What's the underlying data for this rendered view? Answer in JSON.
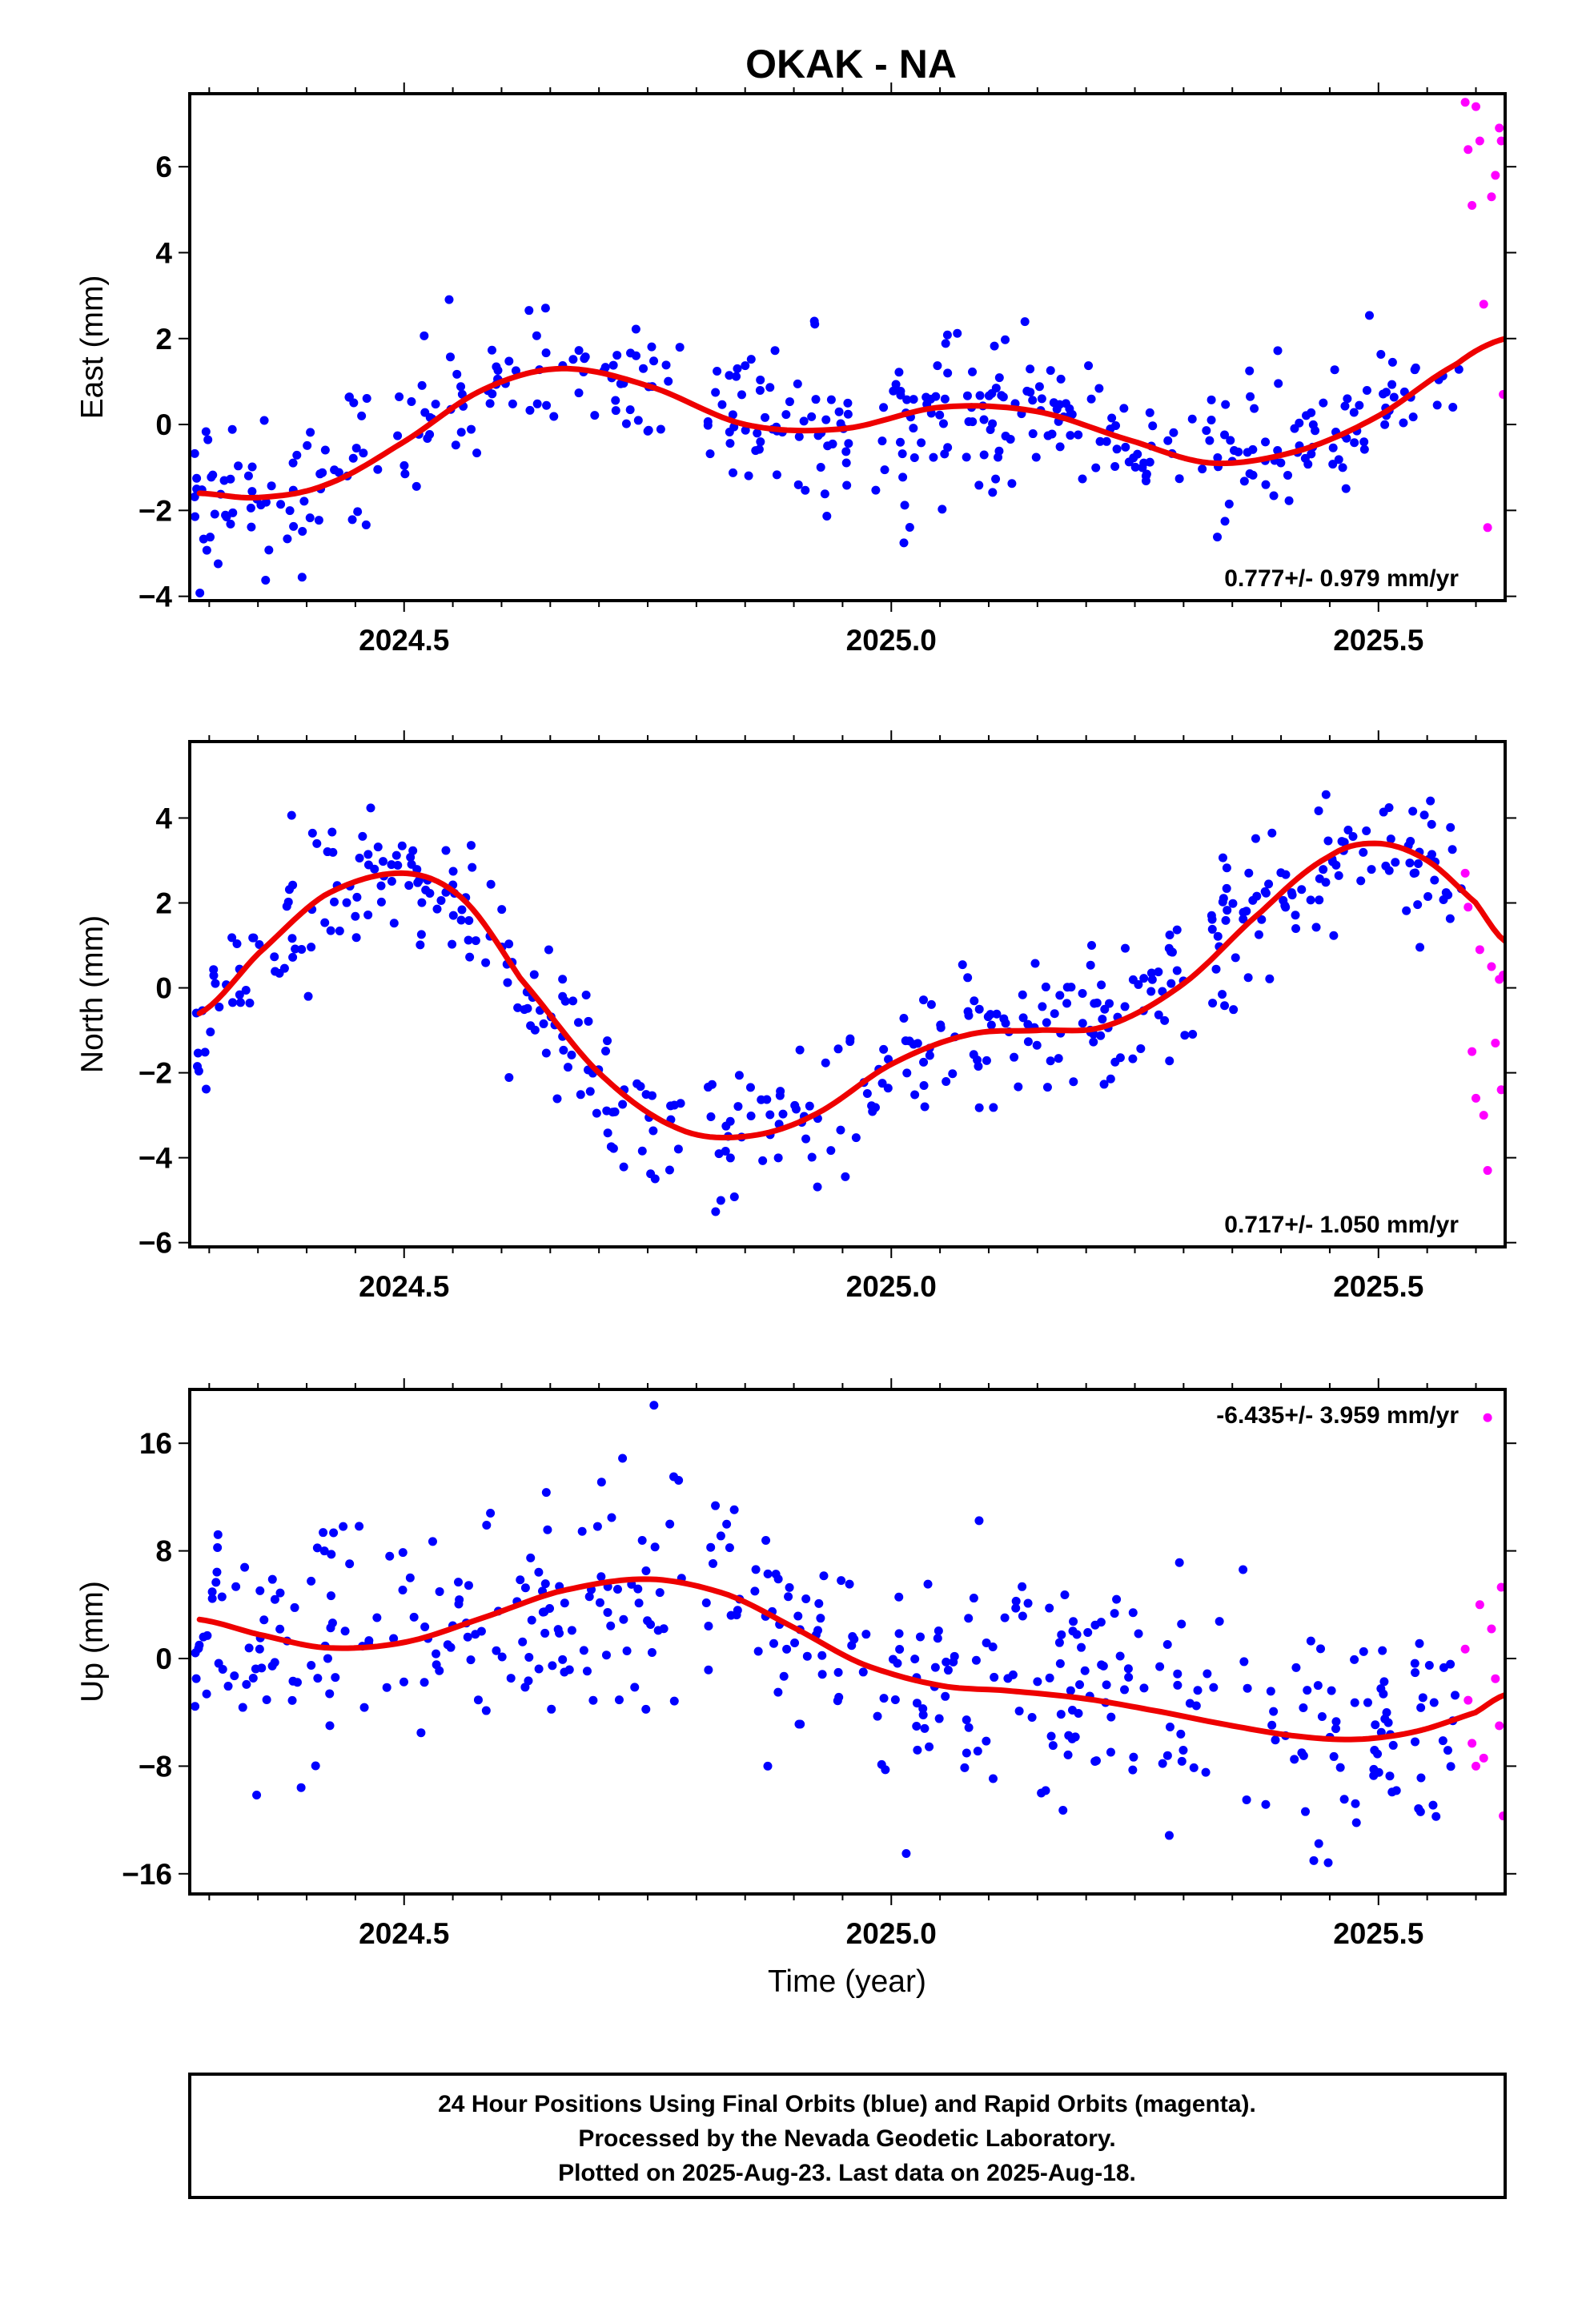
{
  "chart_data": {
    "type": "scatter",
    "title": "OKAK - NA",
    "xlabel": "Time (year)",
    "xlim": [
      2024.28,
      2025.63
    ],
    "x_ticks_major": [
      2024.5,
      2025.0,
      2025.5
    ],
    "x_tick_labels": [
      "2024.5",
      "2025.0",
      "2025.5"
    ],
    "legend": "none",
    "grid": false,
    "colors": {
      "final": "#0000ff",
      "rapid": "#ff00ff",
      "fit": "#ee0000"
    },
    "footer": [
      "24 Hour Positions Using Final Orbits (blue) and Rapid Orbits (magenta).",
      "Processed by the Nevada Geodetic Laboratory.",
      "Plotted on 2025-Aug-23. Last data on 2025-Aug-18."
    ],
    "panels": [
      {
        "name": "east",
        "ylabel": "East (mm)",
        "ylim": [
          -4.1,
          7.7
        ],
        "yticks": [
          -4,
          -2,
          0,
          2,
          4,
          6
        ],
        "ytick_labels": [
          "−4",
          "−2",
          "0",
          "2",
          "4",
          "6"
        ],
        "rate_label": "0.777+/- 0.979 mm/yr",
        "fit": {
          "x": [
            2024.29,
            2024.35,
            2024.42,
            2024.5,
            2024.58,
            2024.66,
            2024.75,
            2024.85,
            2024.95,
            2025.05,
            2025.15,
            2025.25,
            2025.33,
            2025.42,
            2025.5,
            2025.58,
            2025.63
          ],
          "y": [
            -1.6,
            -1.7,
            -1.4,
            -0.4,
            0.8,
            1.3,
            0.9,
            0.0,
            -0.1,
            0.4,
            0.3,
            -0.4,
            -0.9,
            -0.6,
            0.2,
            1.4,
            2.0
          ]
        },
        "rapid": {
          "x": [
            2025.589,
            2025.592,
            2025.596,
            2025.6,
            2025.604,
            2025.608,
            2025.612,
            2025.616,
            2025.62,
            2025.624,
            2025.626,
            2025.628
          ],
          "y": [
            7.5,
            6.4,
            5.1,
            7.4,
            6.6,
            2.8,
            -2.4,
            5.3,
            5.8,
            6.9,
            6.6,
            0.7
          ]
        }
      },
      {
        "name": "north",
        "ylabel": "North (mm)",
        "ylim": [
          -6.1,
          5.8
        ],
        "yticks": [
          -6,
          -4,
          -2,
          0,
          2,
          4
        ],
        "ytick_labels": [
          "−6",
          "−4",
          "−2",
          "0",
          "2",
          "4"
        ],
        "rate_label": "0.717+/- 1.050 mm/yr",
        "fit": {
          "x": [
            2024.29,
            2024.35,
            2024.42,
            2024.5,
            2024.56,
            2024.62,
            2024.7,
            2024.78,
            2024.85,
            2024.92,
            2025.0,
            2025.08,
            2025.15,
            2025.22,
            2025.3,
            2025.38,
            2025.45,
            2025.5,
            2025.55,
            2025.6,
            2025.63
          ],
          "y": [
            -0.6,
            0.8,
            2.2,
            2.7,
            2.1,
            0.2,
            -2.0,
            -3.3,
            -3.5,
            -3.0,
            -1.8,
            -1.1,
            -1.0,
            -0.9,
            0.1,
            1.8,
            3.1,
            3.4,
            3.0,
            2.0,
            1.1
          ]
        },
        "rapid": {
          "x": [
            2025.589,
            2025.592,
            2025.596,
            2025.6,
            2025.604,
            2025.608,
            2025.612,
            2025.616,
            2025.62,
            2025.624,
            2025.626,
            2025.628
          ],
          "y": [
            2.7,
            1.9,
            -1.5,
            -2.6,
            0.9,
            -3.0,
            -4.3,
            0.5,
            -1.3,
            0.2,
            -2.4,
            0.3
          ]
        }
      },
      {
        "name": "up",
        "ylabel": "Up (mm)",
        "ylim": [
          -17.5,
          20.0
        ],
        "yticks": [
          -16,
          -8,
          0,
          8,
          16
        ],
        "ytick_labels": [
          "−16",
          "−8",
          "0",
          "8",
          "16"
        ],
        "rate_label": "-6.435+/- 3.959 mm/yr",
        "fit": {
          "x": [
            2024.29,
            2024.35,
            2024.42,
            2024.5,
            2024.58,
            2024.66,
            2024.75,
            2024.83,
            2024.9,
            2024.97,
            2025.05,
            2025.12,
            2025.2,
            2025.28,
            2025.35,
            2025.42,
            2025.48,
            2025.54,
            2025.6,
            2025.63
          ],
          "y": [
            2.9,
            1.8,
            0.8,
            1.2,
            3.0,
            5.0,
            5.9,
            4.8,
            2.3,
            -0.4,
            -2.0,
            -2.4,
            -3.0,
            -4.0,
            -5.0,
            -5.8,
            -6.0,
            -5.4,
            -4.0,
            -2.7
          ]
        },
        "rapid": {
          "x": [
            2025.589,
            2025.592,
            2025.596,
            2025.6,
            2025.604,
            2025.608,
            2025.612,
            2025.616,
            2025.62,
            2025.624,
            2025.626,
            2025.628
          ],
          "y": [
            0.7,
            -3.1,
            -6.3,
            -8.0,
            4.0,
            -7.4,
            17.9,
            2.2,
            -1.5,
            -5.0,
            5.3,
            -11.7
          ]
        }
      }
    ]
  }
}
